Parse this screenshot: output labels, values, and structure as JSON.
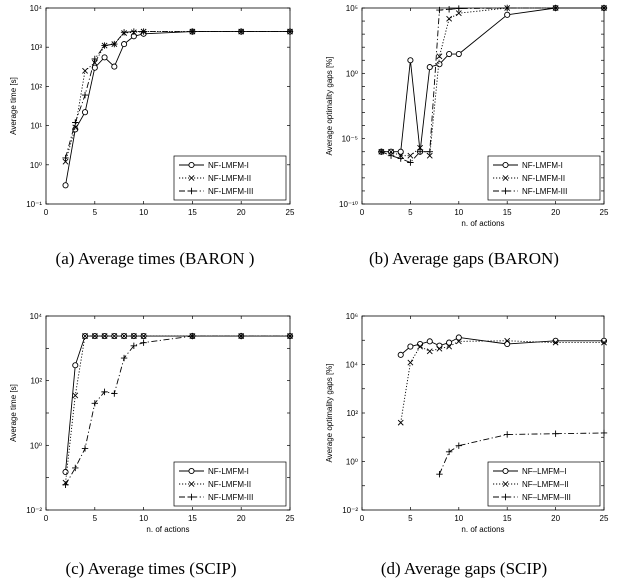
{
  "chart_data": [
    {
      "type": "line",
      "caption": "(a) Average times (BARON )",
      "xlabel": "",
      "ylabel": "Average time [s]",
      "yscale": "log",
      "xlim": [
        0,
        25
      ],
      "ylim": [
        0.1,
        10000
      ],
      "xticks": [
        "0",
        "5",
        "10",
        "15",
        "20",
        "25"
      ],
      "yticks": [
        "10⁻¹",
        "10⁰",
        "10¹",
        "10²",
        "10³",
        "10⁴"
      ],
      "grid": false,
      "legend": "bottom-right",
      "series": [
        {
          "name": "NF-LMFM-I",
          "marker": "circle",
          "dash": "solid",
          "x": [
            2,
            3,
            4,
            5,
            6,
            7,
            8,
            9,
            10,
            15,
            20,
            25
          ],
          "y": [
            0.3,
            8,
            22,
            300,
            550,
            320,
            1200,
            1900,
            2200,
            2500,
            2500,
            2500
          ]
        },
        {
          "name": "NF-LMFM-II",
          "marker": "x",
          "dash": "dotted",
          "x": [
            2,
            3,
            4,
            5,
            6,
            7,
            8,
            9,
            10,
            15,
            20,
            25
          ],
          "y": [
            1.2,
            9,
            250,
            400,
            1100,
            1200,
            2300,
            2400,
            2500,
            2500,
            2500,
            2500
          ]
        },
        {
          "name": "NF-LMFM-III",
          "marker": "plus",
          "dash": "dashdot",
          "x": [
            2,
            3,
            4,
            5,
            6,
            7,
            8,
            9,
            10,
            15,
            20,
            25
          ],
          "y": [
            1.5,
            12,
            60,
            500,
            1100,
            1200,
            2400,
            2500,
            2500,
            2500,
            2500,
            2500
          ]
        }
      ]
    },
    {
      "type": "line",
      "caption": "(b) Average gaps (BARON)",
      "xlabel": "n. of actions",
      "ylabel": "Average optimality gaps [%]",
      "yscale": "log",
      "xlim": [
        0,
        25
      ],
      "ylim": [
        1e-10,
        100000
      ],
      "xticks": [
        "0",
        "5",
        "10",
        "15",
        "20",
        "25"
      ],
      "yticks": [
        "10⁻¹⁰",
        "10⁻⁵",
        "10⁰",
        "10⁵"
      ],
      "grid": false,
      "legend": "bottom-right",
      "series": [
        {
          "name": "NF-LMFM-I",
          "marker": "circle",
          "dash": "solid",
          "x": [
            2,
            3,
            4,
            5,
            6,
            7,
            8,
            9,
            10,
            15,
            20,
            25
          ],
          "y": [
            1e-06,
            1e-06,
            1e-06,
            10,
            1e-06,
            3,
            5,
            30,
            30,
            30000,
            100000,
            100000
          ]
        },
        {
          "name": "NF-LMFM-II",
          "marker": "x",
          "dash": "dotted",
          "x": [
            2,
            3,
            4,
            5,
            6,
            7,
            8,
            9,
            10,
            15,
            20,
            25
          ],
          "y": [
            1e-06,
            1e-06,
            5e-07,
            5e-07,
            2e-06,
            5e-07,
            20,
            15000,
            40000,
            100000,
            100000,
            100000
          ]
        },
        {
          "name": "NF-LMFM-III",
          "marker": "plus",
          "dash": "dashdot",
          "x": [
            2,
            3,
            4,
            5,
            6,
            7,
            8,
            9,
            10,
            15,
            20,
            25
          ],
          "y": [
            1e-06,
            5e-07,
            3e-07,
            1.5e-07,
            1e-06,
            1e-06,
            70000,
            80000,
            90000,
            100000,
            100000,
            100000
          ]
        }
      ]
    },
    {
      "type": "line",
      "caption": "(c) Average times (SCIP)",
      "xlabel": "n. of actions",
      "ylabel": "Average time [s]",
      "yscale": "log",
      "xlim": [
        0,
        25
      ],
      "ylim": [
        0.01,
        10000
      ],
      "xticks": [
        "0",
        "5",
        "10",
        "15",
        "20",
        "25"
      ],
      "yticks": [
        "10⁻²",
        "10⁰",
        "10²",
        "10⁴"
      ],
      "grid": false,
      "legend": "bottom-right",
      "series": [
        {
          "name": "NF-LMFM-I",
          "marker": "circle",
          "dash": "solid",
          "x": [
            2,
            3,
            4,
            5,
            6,
            7,
            8,
            9,
            10,
            15,
            20,
            25
          ],
          "y": [
            0.15,
            300,
            2400,
            2400,
            2400,
            2400,
            2400,
            2400,
            2400,
            2400,
            2400,
            2400
          ]
        },
        {
          "name": "NF-LMFM-II",
          "marker": "x",
          "dash": "dotted",
          "x": [
            2,
            3,
            4,
            5,
            6,
            7,
            8,
            9,
            10,
            15,
            20,
            25
          ],
          "y": [
            0.07,
            35,
            2400,
            2400,
            2400,
            2400,
            2400,
            2400,
            2400,
            2400,
            2400,
            2400
          ]
        },
        {
          "name": "NF-LMFM-III",
          "marker": "plus",
          "dash": "dashdot",
          "x": [
            2,
            3,
            4,
            5,
            6,
            7,
            8,
            9,
            10,
            15,
            20,
            25
          ],
          "y": [
            0.06,
            0.2,
            0.8,
            20,
            45,
            40,
            500,
            1200,
            1500,
            2400,
            2400,
            2400
          ]
        }
      ]
    },
    {
      "type": "line",
      "caption": "(d) Average gaps (SCIP)",
      "xlabel": "n. of actions",
      "ylabel": "Average optimality gaps [%]",
      "yscale": "log",
      "xlim": [
        0,
        25
      ],
      "ylim": [
        0.01,
        1000000
      ],
      "xticks": [
        "0",
        "5",
        "10",
        "15",
        "20",
        "25"
      ],
      "yticks": [
        "10⁻²",
        "10⁰",
        "10²",
        "10⁴",
        "10⁶"
      ],
      "grid": false,
      "legend": "bottom-right",
      "series": [
        {
          "name": "NF–LMFM–I",
          "marker": "circle",
          "dash": "solid",
          "x": [
            4,
            5,
            6,
            7,
            8,
            9,
            10,
            15,
            20,
            25
          ],
          "y": [
            25000,
            55000,
            70000,
            90000,
            60000,
            80000,
            130000,
            70000,
            95000,
            95000
          ]
        },
        {
          "name": "NF–LMFM–II",
          "marker": "x",
          "dash": "dotted",
          "x": [
            4,
            5,
            6,
            7,
            8,
            9,
            10,
            15,
            20,
            25
          ],
          "y": [
            40,
            12000,
            55000,
            35000,
            45000,
            55000,
            90000,
            95000,
            80000,
            80000
          ]
        },
        {
          "name": "NF–LMFM–III",
          "marker": "plus",
          "dash": "dashdot",
          "x": [
            8,
            9,
            10,
            15,
            20,
            25
          ],
          "y": [
            0.3,
            2.5,
            4.5,
            13,
            14,
            15
          ]
        }
      ]
    }
  ]
}
